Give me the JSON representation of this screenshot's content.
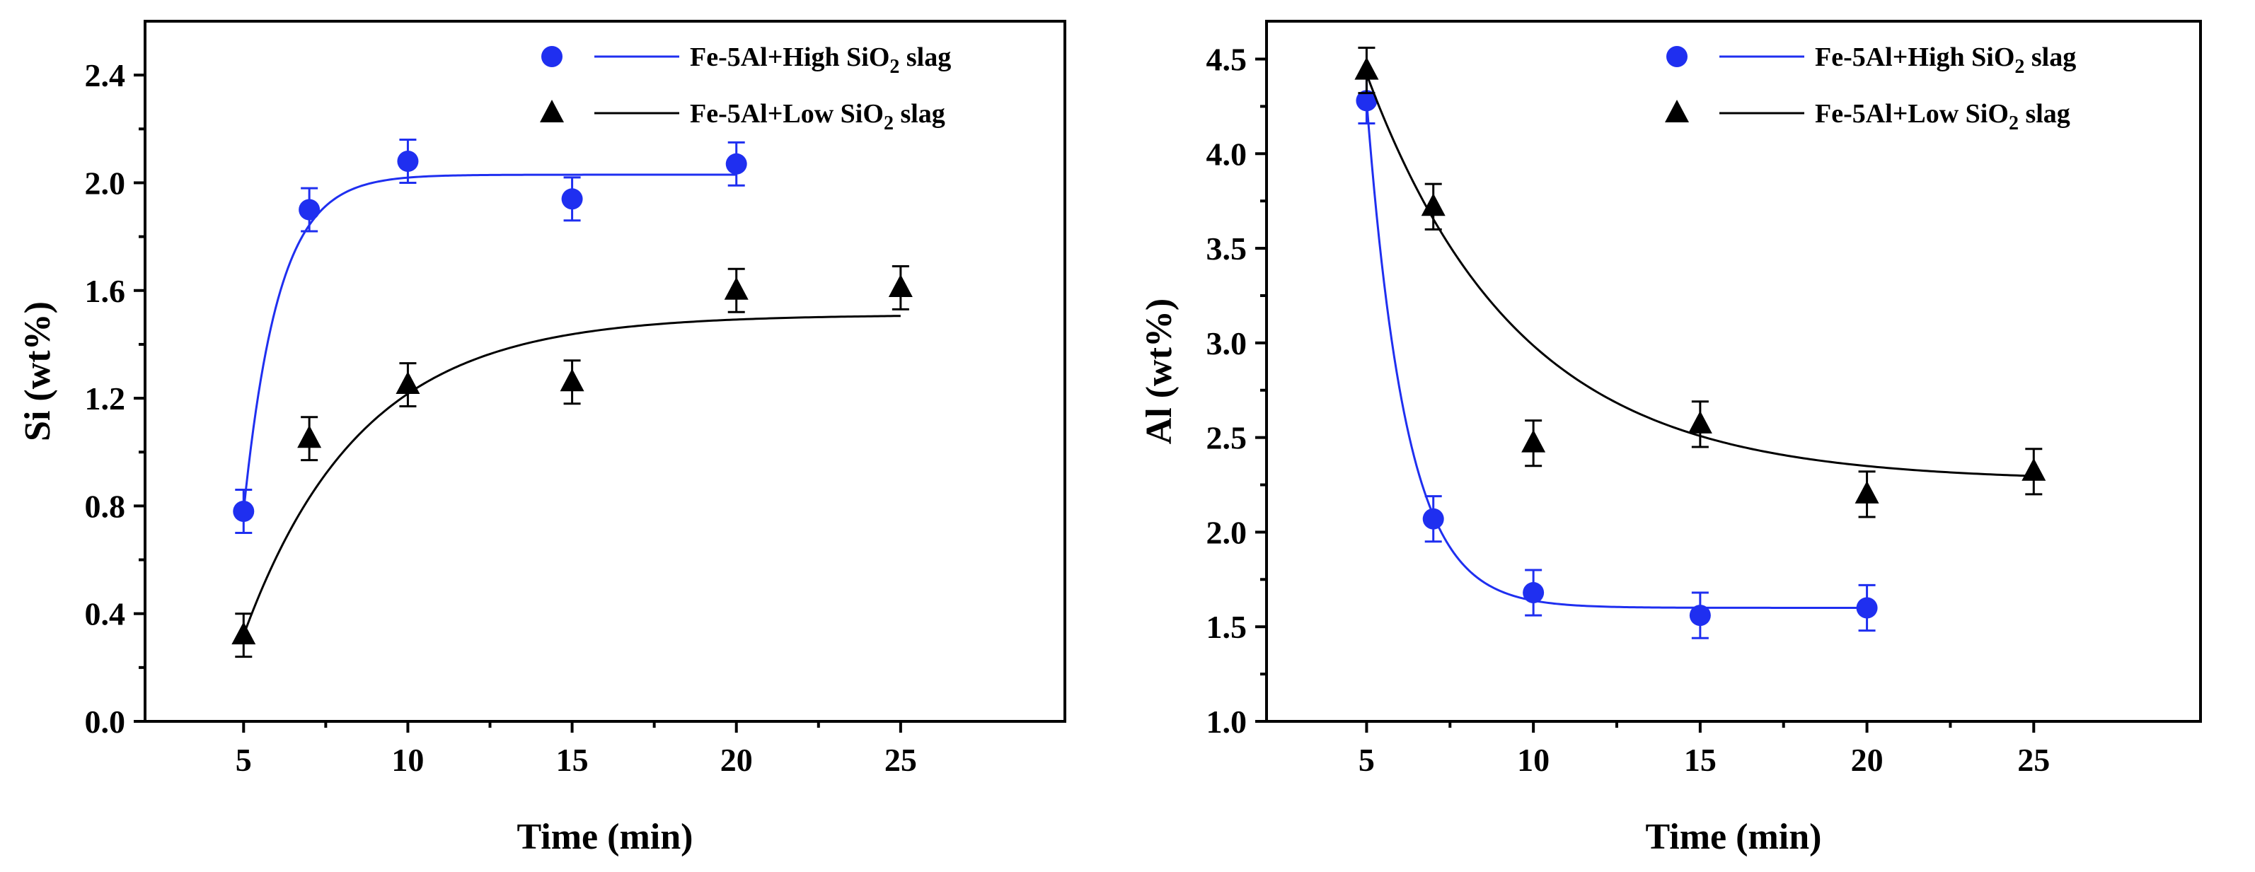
{
  "chart_data": [
    {
      "type": "scatter",
      "xlabel": "Time (min)",
      "ylabel": "Si (wt%)",
      "xlim": [
        2,
        30
      ],
      "ylim": [
        0,
        2.6
      ],
      "xticks": [
        5,
        10,
        15,
        20,
        25
      ],
      "xtick_labels": [
        "5",
        "10",
        "15",
        "20",
        "25"
      ],
      "yticks": [
        0,
        0.4,
        0.8,
        1.2,
        1.6,
        2.0,
        2.4
      ],
      "ytick_labels": [
        "0.0",
        "0.4",
        "0.8",
        "1.2",
        "1.6",
        "2.0",
        "2.4"
      ],
      "legend_position": "top-right",
      "series": [
        {
          "name": "Fe-5Al+High SiO2 slag",
          "legend_main": "Fe-5Al+High SiO",
          "legend_sub": "2",
          "legend_tail": " slag",
          "color": "#1f2ff0",
          "marker": "circle",
          "x": [
            5,
            7,
            10,
            15,
            20
          ],
          "y": [
            0.78,
            1.9,
            2.08,
            1.94,
            2.07
          ],
          "yerr": [
            0.08,
            0.08,
            0.08,
            0.08,
            0.08
          ],
          "fit": {
            "a": 2.03,
            "b": 1.25,
            "k": 0.95,
            "x0": 5,
            "x_end": 20
          }
        },
        {
          "name": "Fe-5Al+Low SiO2 slag",
          "legend_main": "Fe-5Al+Low SiO",
          "legend_sub": "2",
          "legend_tail": " slag",
          "color": "#000000",
          "marker": "triangle",
          "x": [
            5,
            7,
            10,
            15,
            20,
            25
          ],
          "y": [
            0.32,
            1.05,
            1.25,
            1.26,
            1.6,
            1.61
          ],
          "yerr": [
            0.08,
            0.08,
            0.08,
            0.08,
            0.08,
            0.08
          ],
          "fit": {
            "a": 1.51,
            "b": 1.19,
            "k": 0.28,
            "x0": 5,
            "x_end": 25
          }
        }
      ]
    },
    {
      "type": "scatter",
      "xlabel": "Time (min)",
      "ylabel": "Al (wt%)",
      "xlim": [
        2,
        30
      ],
      "ylim": [
        1.0,
        4.7
      ],
      "xticks": [
        5,
        10,
        15,
        20,
        25
      ],
      "xtick_labels": [
        "5",
        "10",
        "15",
        "20",
        "25"
      ],
      "yticks": [
        1.0,
        1.5,
        2.0,
        2.5,
        3.0,
        3.5,
        4.0,
        4.5
      ],
      "ytick_labels": [
        "1.0",
        "1.5",
        "2.0",
        "2.5",
        "3.0",
        "3.5",
        "4.0",
        "4.5"
      ],
      "legend_position": "top-right",
      "series": [
        {
          "name": "Fe-5Al+High SiO2 slag",
          "legend_main": "Fe-5Al+High SiO",
          "legend_sub": "2",
          "legend_tail": " slag",
          "color": "#1f2ff0",
          "marker": "circle",
          "x": [
            5,
            7,
            10,
            15,
            20
          ],
          "y": [
            4.28,
            2.07,
            1.68,
            1.56,
            1.6
          ],
          "yerr": [
            0.12,
            0.12,
            0.12,
            0.12,
            0.12
          ],
          "fit": {
            "a": 1.6,
            "b": 2.68,
            "k": 0.85,
            "x0": 5,
            "x_end": 20
          }
        },
        {
          "name": "Fe-5Al+Low SiO2 slag",
          "legend_main": "Fe-5Al+Low SiO",
          "legend_sub": "2",
          "legend_tail": " slag",
          "color": "#000000",
          "marker": "triangle",
          "x": [
            5,
            7,
            10,
            15,
            20,
            25
          ],
          "y": [
            4.44,
            3.72,
            2.47,
            2.57,
            2.2,
            2.32
          ],
          "yerr": [
            0.12,
            0.12,
            0.12,
            0.12,
            0.12,
            0.12
          ],
          "fit": {
            "a": 2.27,
            "b": 2.15,
            "k": 0.22,
            "x0": 5,
            "x_end": 25
          }
        }
      ]
    }
  ]
}
